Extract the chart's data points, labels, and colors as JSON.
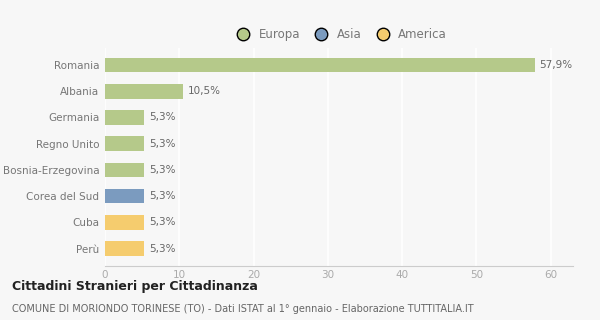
{
  "categories": [
    "Romania",
    "Albania",
    "Germania",
    "Regno Unito",
    "Bosnia-Erzegovina",
    "Corea del Sud",
    "Cuba",
    "Perù"
  ],
  "values": [
    57.9,
    10.5,
    5.3,
    5.3,
    5.3,
    5.3,
    5.3,
    5.3
  ],
  "labels": [
    "57,9%",
    "10,5%",
    "5,3%",
    "5,3%",
    "5,3%",
    "5,3%",
    "5,3%",
    "5,3%"
  ],
  "colors": [
    "#b5c98a",
    "#b5c98a",
    "#b5c98a",
    "#b5c98a",
    "#b5c98a",
    "#7b9bbf",
    "#f5cc6e",
    "#f5cc6e"
  ],
  "legend_labels": [
    "Europa",
    "Asia",
    "America"
  ],
  "legend_colors": [
    "#b5c98a",
    "#7b9bbf",
    "#f5cc6e"
  ],
  "title": "Cittadini Stranieri per Cittadinanza",
  "subtitle": "COMUNE DI MORIONDO TORINESE (TO) - Dati ISTAT al 1° gennaio - Elaborazione TUTTITALIA.IT",
  "xlim": [
    0,
    63
  ],
  "xticks": [
    0,
    10,
    20,
    30,
    40,
    50,
    60
  ],
  "bg_color": "#f7f7f7",
  "plot_bg": "#f7f7f7",
  "grid_color": "#ffffff",
  "bar_height": 0.55,
  "label_fontsize": 7.5,
  "ytick_fontsize": 7.5,
  "xtick_fontsize": 7.5,
  "legend_fontsize": 8.5,
  "title_fontsize": 9,
  "subtitle_fontsize": 7
}
